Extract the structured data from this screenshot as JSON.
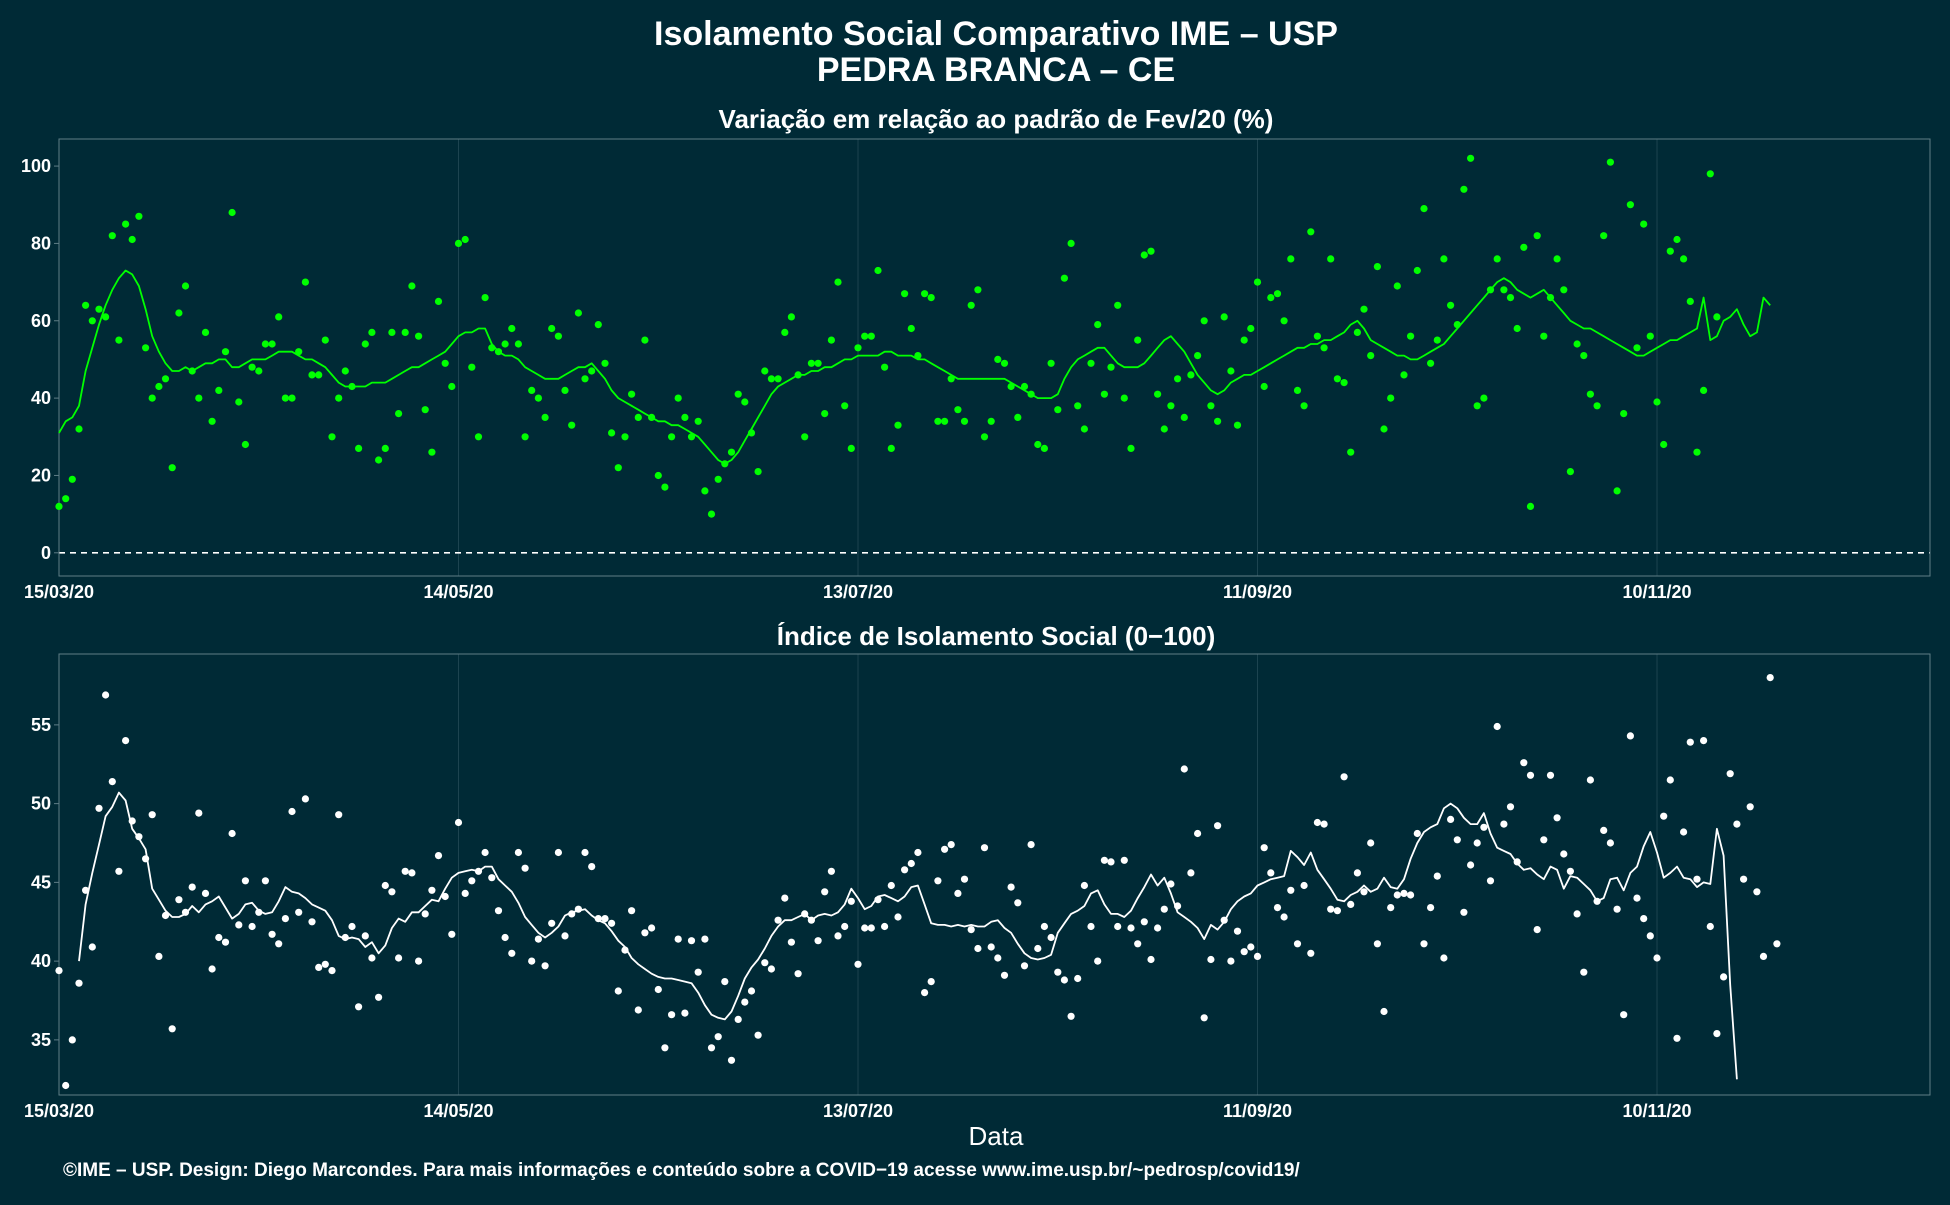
{
  "title_line1": "Isolamento Social Comparativo IME – USP",
  "title_line2": "PEDRA BRANCA – CE",
  "xlabel": "Data",
  "caption": "©IME – USP. Design: Diego Marcondes. Para mais informações e conteúdo sobre a COVID−19 acesse www.ime.usp.br/~pedrosp/covid19/",
  "colors": {
    "background": "#002a36",
    "panel_border": "#5f7d86",
    "grid": "#1d4450",
    "top_series": "#00ff00",
    "bottom_series": "#ffffff"
  },
  "chart_data": [
    {
      "type": "scatter",
      "title": "Variação em relação ao padrão de Fev/20 (%)",
      "x_ticks": [
        "15/03/20",
        "14/05/20",
        "13/07/20",
        "11/09/20",
        "10/11/20"
      ],
      "y_ticks": [
        "0",
        "20",
        "40",
        "60",
        "80",
        "100"
      ],
      "xlim": [
        0,
        281
      ],
      "ylim": [
        -6,
        107
      ],
      "reference_line": 0,
      "grid": true,
      "series": [
        {
          "kind": "points",
          "values": [
            12,
            14,
            19,
            32,
            64,
            60,
            63,
            61,
            82,
            55,
            85,
            81,
            87,
            53,
            40,
            43,
            45,
            22,
            62,
            69,
            47,
            40,
            57,
            34,
            42,
            52,
            88,
            39,
            28,
            48,
            47,
            54,
            54,
            61,
            40,
            40,
            52,
            70,
            46,
            46,
            55,
            30,
            40,
            47,
            43,
            27,
            54,
            57,
            24,
            27,
            57,
            36,
            57,
            69,
            56,
            37,
            26,
            65,
            49,
            43,
            80,
            81,
            48,
            30,
            66,
            53,
            52,
            54,
            58,
            54,
            30,
            42,
            40,
            35,
            58,
            56,
            42,
            33,
            62,
            45,
            47,
            59,
            49,
            31,
            22,
            30,
            41,
            35,
            55,
            35,
            20,
            17,
            30,
            40,
            35,
            30,
            34,
            16,
            10,
            19,
            23,
            26,
            41,
            39,
            31,
            21,
            47,
            45,
            45,
            57,
            61,
            46,
            30,
            49,
            49,
            36,
            55,
            70,
            38,
            27,
            53,
            56,
            56,
            73,
            48,
            27,
            33,
            67,
            58,
            51,
            67,
            66,
            34,
            34,
            45,
            37,
            34,
            64,
            68,
            30,
            34,
            50,
            49,
            43,
            35,
            43,
            41,
            28,
            27,
            49,
            37,
            71,
            80,
            38,
            32,
            49,
            59,
            41,
            48,
            64,
            40,
            27,
            55,
            77,
            78,
            41,
            32,
            38,
            45,
            35,
            46,
            51,
            60,
            38,
            34,
            61,
            47,
            33,
            55,
            58,
            70,
            43,
            66,
            67,
            60,
            76,
            42,
            38,
            83,
            56,
            53,
            76,
            45,
            44,
            26,
            57,
            63,
            51,
            74,
            32,
            40,
            69,
            46,
            56,
            73,
            89,
            49,
            55,
            76,
            64,
            59,
            94,
            102,
            38,
            40,
            68,
            76,
            68,
            66,
            58,
            79,
            12,
            82,
            56,
            66,
            76,
            68,
            21,
            54,
            51,
            41,
            38,
            82,
            101,
            16,
            36,
            90,
            53,
            85,
            56,
            39,
            28,
            78,
            81,
            76,
            65,
            26,
            42,
            98,
            61
          ]
        },
        {
          "kind": "moving_average",
          "values": [
            31,
            34,
            35,
            38,
            47,
            53,
            59,
            64,
            68,
            71,
            73,
            72,
            69,
            63,
            56,
            52,
            49,
            47,
            47,
            48,
            47,
            48,
            49,
            49,
            50,
            50,
            48,
            48,
            49,
            50,
            50,
            50,
            51,
            52,
            52,
            52,
            51,
            50,
            50,
            49,
            48,
            46,
            44,
            43,
            43,
            43,
            43,
            44,
            44,
            44,
            45,
            46,
            47,
            48,
            48,
            49,
            50,
            51,
            52,
            54,
            56,
            57,
            57,
            58,
            58,
            54,
            52,
            51,
            51,
            50,
            48,
            47,
            46,
            45,
            45,
            45,
            46,
            47,
            48,
            48,
            49,
            47,
            45,
            42,
            40,
            39,
            38,
            37,
            36,
            35,
            34,
            34,
            33,
            33,
            32,
            31,
            30,
            28,
            26,
            24,
            23,
            24,
            26,
            29,
            32,
            35,
            38,
            41,
            43,
            44,
            45,
            46,
            46,
            47,
            47,
            48,
            48,
            49,
            50,
            50,
            51,
            51,
            51,
            51,
            52,
            52,
            51,
            51,
            51,
            50,
            50,
            49,
            48,
            47,
            46,
            45,
            45,
            45,
            45,
            45,
            45,
            45,
            45,
            44,
            43,
            42,
            41,
            40,
            40,
            40,
            41,
            45,
            48,
            50,
            51,
            52,
            53,
            53,
            51,
            49,
            48,
            48,
            48,
            49,
            51,
            53,
            55,
            56,
            54,
            52,
            49,
            46,
            44,
            42,
            41,
            42,
            44,
            45,
            46,
            46,
            47,
            48,
            49,
            50,
            51,
            52,
            53,
            53,
            54,
            54,
            55,
            55,
            56,
            57,
            59,
            60,
            58,
            55,
            54,
            53,
            52,
            51,
            51,
            50,
            50,
            51,
            52,
            53,
            54,
            56,
            58,
            60,
            62,
            64,
            66,
            68,
            70,
            71,
            70,
            68,
            67,
            66,
            67,
            68,
            66,
            64,
            62,
            60,
            59,
            58,
            58,
            57,
            56,
            55,
            54,
            53,
            52,
            51,
            51,
            52,
            53,
            54,
            55,
            55,
            56,
            57,
            58,
            66,
            55,
            56,
            60,
            61,
            63,
            59,
            56,
            57,
            66,
            64
          ]
        }
      ]
    },
    {
      "type": "scatter",
      "title": "Índice de Isolamento Social (0−100)",
      "x_ticks": [
        "15/03/20",
        "14/05/20",
        "13/07/20",
        "11/09/20",
        "10/11/20"
      ],
      "y_ticks": [
        "35",
        "40",
        "45",
        "50",
        "55"
      ],
      "xlim": [
        0,
        281
      ],
      "ylim": [
        31.5,
        59.5
      ],
      "grid": true,
      "series": [
        {
          "kind": "points",
          "values": [
            39.4,
            32.1,
            35.0,
            38.6,
            44.5,
            40.9,
            49.7,
            56.9,
            51.4,
            45.7,
            54.0,
            48.9,
            47.9,
            46.5,
            49.3,
            40.3,
            42.9,
            35.7,
            43.9,
            43.1,
            44.7,
            49.4,
            44.3,
            39.5,
            41.5,
            41.2,
            48.1,
            42.3,
            45.1,
            42.2,
            43.1,
            45.1,
            41.7,
            41.1,
            42.7,
            49.5,
            43.1,
            50.3,
            42.5,
            39.6,
            39.8,
            39.4,
            49.3,
            41.5,
            42.2,
            37.1,
            41.6,
            40.2,
            37.7,
            44.8,
            44.4,
            40.2,
            45.7,
            45.6,
            40.0,
            43.0,
            44.5,
            46.7,
            44.1,
            41.7,
            48.8,
            44.3,
            45.1,
            45.7,
            46.9,
            45.3,
            43.2,
            41.5,
            40.5,
            46.9,
            45.9,
            40.0,
            41.4,
            39.7,
            42.4,
            46.9,
            41.6,
            43.0,
            43.3,
            46.9,
            46.0,
            42.7,
            42.7,
            42.4,
            38.1,
            40.7,
            43.2,
            36.9,
            41.8,
            42.1,
            38.2,
            34.5,
            36.6,
            41.4,
            36.7,
            41.3,
            39.3,
            41.4,
            34.5,
            35.2,
            38.7,
            33.7,
            36.3,
            37.4,
            38.1,
            35.3,
            39.9,
            39.5,
            42.6,
            44.0,
            41.2,
            39.2,
            43.0,
            42.6,
            41.3,
            44.4,
            45.7,
            41.6,
            42.2,
            43.8,
            39.8,
            42.1,
            42.1,
            43.9,
            42.2,
            44.8,
            42.8,
            45.8,
            46.2,
            46.9,
            38.0,
            38.7,
            45.1,
            47.1,
            47.4,
            44.3,
            45.2,
            42.0,
            40.8,
            47.2,
            40.9,
            40.2,
            39.1,
            44.7,
            43.7,
            39.7,
            47.4,
            40.8,
            42.2,
            41.5,
            39.3,
            38.8,
            36.5,
            38.9,
            44.8,
            42.2,
            40.0,
            46.4,
            46.3,
            42.2,
            46.4,
            42.1,
            41.1,
            42.5,
            40.1,
            42.1,
            43.3,
            44.9,
            43.5,
            52.2,
            45.6,
            48.1,
            36.4,
            40.1,
            48.6,
            42.6,
            40.0,
            41.9,
            40.6,
            40.9,
            40.3,
            47.2,
            45.6,
            43.4,
            42.8,
            44.5,
            41.1,
            44.8,
            40.5,
            48.8,
            48.7,
            43.3,
            43.2,
            51.7,
            43.6,
            45.6,
            44.4,
            47.5,
            41.1,
            36.8,
            43.4,
            44.2,
            44.3,
            44.2,
            48.1,
            41.1,
            43.4,
            45.4,
            40.2,
            49.0,
            47.7,
            43.1,
            46.1,
            47.5,
            48.5,
            45.1,
            54.9,
            48.7,
            49.8,
            46.3,
            52.6,
            51.8,
            42.0,
            47.7,
            51.8,
            49.1,
            46.8,
            45.7,
            43.0,
            39.3,
            51.5,
            43.8,
            48.3,
            47.5,
            43.3,
            36.6,
            54.3,
            44.0,
            42.7,
            41.6,
            40.2,
            49.2,
            51.5,
            35.1,
            48.2,
            53.9,
            45.2,
            54.0,
            42.2,
            35.4,
            39.0,
            51.9,
            48.7,
            45.2,
            49.8,
            44.4,
            40.3,
            58.0,
            41.1
          ]
        },
        {
          "kind": "moving_average",
          "start": 3,
          "values": [
            40.0,
            43.6,
            45.6,
            47.4,
            49.2,
            49.8,
            50.7,
            50.2,
            48.4,
            47.8,
            47.1,
            44.6,
            43.9,
            43.2,
            42.8,
            42.8,
            43.0,
            43.5,
            43.1,
            43.6,
            43.8,
            44.1,
            43.4,
            42.7,
            43.0,
            43.6,
            43.7,
            43.2,
            43.0,
            43.1,
            43.8,
            44.7,
            44.4,
            44.3,
            44.0,
            43.6,
            43.4,
            43.2,
            42.6,
            41.6,
            41.4,
            41.5,
            41.4,
            40.9,
            41.2,
            40.5,
            41.0,
            42.1,
            42.7,
            42.5,
            43.1,
            43.1,
            43.5,
            43.9,
            43.8,
            44.6,
            45.3,
            45.6,
            45.7,
            45.8,
            45.7,
            46.0,
            46.0,
            45.2,
            44.8,
            44.4,
            43.7,
            42.8,
            42.3,
            41.8,
            41.5,
            41.8,
            42.2,
            42.9,
            43.1,
            43.2,
            43.3,
            42.9,
            42.6,
            42.4,
            41.9,
            41.3,
            40.9,
            40.2,
            39.8,
            39.5,
            39.2,
            39.0,
            38.9,
            38.9,
            38.8,
            38.7,
            38.6,
            38.0,
            37.2,
            36.6,
            36.4,
            36.3,
            36.8,
            37.8,
            38.9,
            39.6,
            40.1,
            40.8,
            41.6,
            42.2,
            42.6,
            42.6,
            42.8,
            43.0,
            42.6,
            42.9,
            43.0,
            42.9,
            43.1,
            43.6,
            44.6,
            44.0,
            43.3,
            43.5,
            44.1,
            44.2,
            44.0,
            43.8,
            44.1,
            44.7,
            44.8,
            43.6,
            42.4,
            42.3,
            42.3,
            42.2,
            42.3,
            42.2,
            42.3,
            42.2,
            42.2,
            42.5,
            42.6,
            42.1,
            41.8,
            41.1,
            40.5,
            40.2,
            40.1,
            40.2,
            40.4,
            41.8,
            42.4,
            43.0,
            43.2,
            43.5,
            44.3,
            44.5,
            43.6,
            43.0,
            43.0,
            42.8,
            43.2,
            44.0,
            44.7,
            45.5,
            44.8,
            45.3,
            44.3,
            43.1,
            42.8,
            42.5,
            42.1,
            41.4,
            42.3,
            42.0,
            42.5,
            43.3,
            43.8,
            44.1,
            44.3,
            44.8,
            45.0,
            45.2,
            45.3,
            45.4,
            47.0,
            46.6,
            46.1,
            46.9,
            45.8,
            45.2,
            44.6,
            43.9,
            43.8,
            44.2,
            44.4,
            44.8,
            44.4,
            44.6,
            45.3,
            44.7,
            44.6,
            45.2,
            46.5,
            47.5,
            48.2,
            48.5,
            48.7,
            49.7,
            50.0,
            49.7,
            49.1,
            48.7,
            48.7,
            49.4,
            48.1,
            47.2,
            47.0,
            46.8,
            46.2,
            45.8,
            45.9,
            45.5,
            45.2,
            46.0,
            45.8,
            44.6,
            45.4,
            45.3,
            44.9,
            44.5,
            43.8,
            44.0,
            45.2,
            45.3,
            44.5,
            45.6,
            46.0,
            47.3,
            48.2,
            46.9,
            45.3,
            45.6,
            46.0,
            45.3,
            45.2,
            44.7,
            45.0,
            44.9,
            48.4,
            46.7,
            38.5,
            32.5
          ]
        }
      ]
    }
  ]
}
